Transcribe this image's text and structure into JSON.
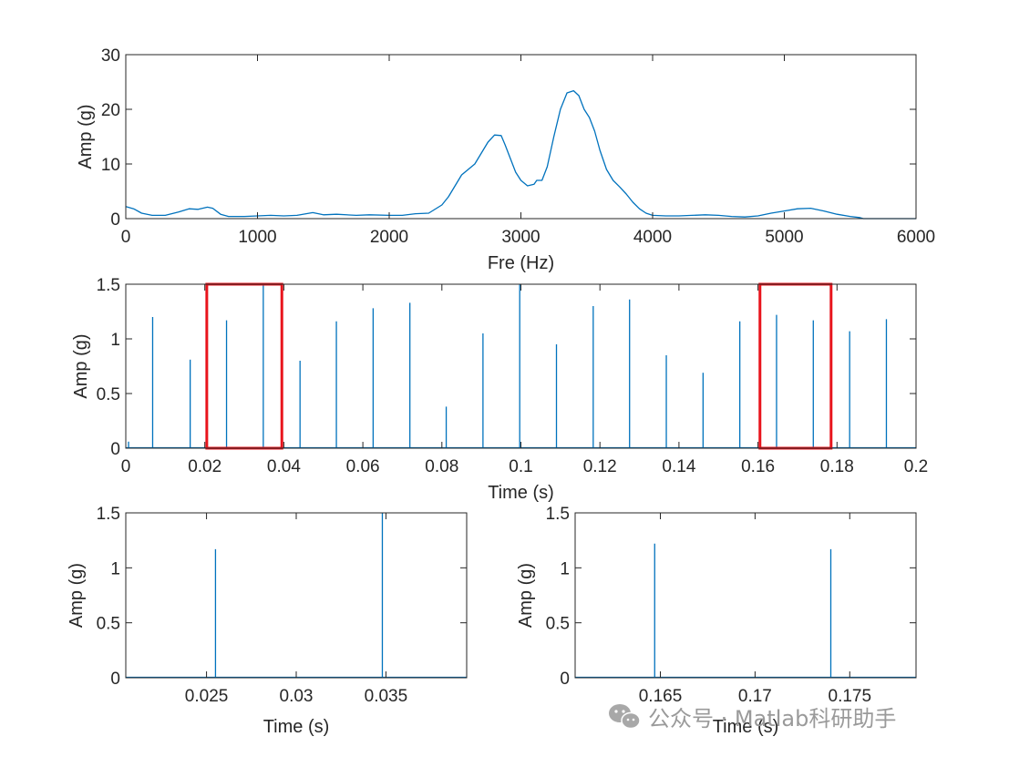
{
  "chart_data": [
    {
      "id": "spectrum",
      "type": "line",
      "xlabel": "Fre (Hz)",
      "ylabel": "Amp (g)",
      "xlim": [
        0,
        6000
      ],
      "ylim": [
        0,
        30
      ],
      "xticks": [
        0,
        1000,
        2000,
        3000,
        4000,
        5000,
        6000
      ],
      "yticks": [
        0,
        10,
        20,
        30
      ],
      "series": [
        {
          "color": "#0072bd",
          "x": [
            0,
            60,
            120,
            200,
            300,
            400,
            480,
            550,
            620,
            660,
            720,
            780,
            900,
            1000,
            1100,
            1200,
            1300,
            1420,
            1500,
            1600,
            1750,
            1850,
            2000,
            2100,
            2200,
            2300,
            2400,
            2450,
            2500,
            2550,
            2600,
            2650,
            2700,
            2750,
            2800,
            2850,
            2880,
            2920,
            2960,
            3000,
            3050,
            3100,
            3120,
            3160,
            3200,
            3250,
            3300,
            3350,
            3400,
            3440,
            3480,
            3520,
            3560,
            3600,
            3650,
            3700,
            3750,
            3800,
            3850,
            3900,
            3950,
            4000,
            4100,
            4200,
            4300,
            4400,
            4500,
            4600,
            4700,
            4800,
            4900,
            5000,
            5100,
            5200,
            5300,
            5400,
            5500,
            5570,
            5600,
            6000
          ],
          "y": [
            2.2,
            1.8,
            1.0,
            0.6,
            0.6,
            1.2,
            1.8,
            1.7,
            2.1,
            1.9,
            0.8,
            0.4,
            0.4,
            0.5,
            0.6,
            0.5,
            0.6,
            1.1,
            0.7,
            0.8,
            0.6,
            0.7,
            0.6,
            0.6,
            0.9,
            1.0,
            2.5,
            4.0,
            6.0,
            8.0,
            9.0,
            10.0,
            12.0,
            14.0,
            15.3,
            15.2,
            13.5,
            11.0,
            8.5,
            7.0,
            6.0,
            6.3,
            7.0,
            7.0,
            9.5,
            15.0,
            20.0,
            23.0,
            23.4,
            22.5,
            20.0,
            18.5,
            16.0,
            12.5,
            9.0,
            7.0,
            5.8,
            4.5,
            3.0,
            1.8,
            1.0,
            0.6,
            0.5,
            0.5,
            0.6,
            0.7,
            0.6,
            0.4,
            0.3,
            0.5,
            1.0,
            1.4,
            1.8,
            1.9,
            1.4,
            0.8,
            0.4,
            0.2,
            0.0,
            0.0
          ]
        }
      ]
    },
    {
      "id": "waveform",
      "type": "line",
      "xlabel": "Time (s)",
      "ylabel": "Amp (g)",
      "xlim": [
        0,
        0.2
      ],
      "ylim": [
        0,
        1.5
      ],
      "xticks": [
        0,
        0.02,
        0.04,
        0.06,
        0.08,
        0.1,
        0.12,
        0.14,
        0.16,
        0.18,
        0.2
      ],
      "yticks": [
        0,
        0.5,
        1,
        1.5
      ],
      "spikes": [
        {
          "x": 0.0007,
          "y": 0.06
        },
        {
          "x": 0.0068,
          "y": 1.2
        },
        {
          "x": 0.0163,
          "y": 0.81
        },
        {
          "x": 0.0255,
          "y": 1.17
        },
        {
          "x": 0.0348,
          "y": 1.5
        },
        {
          "x": 0.0441,
          "y": 0.8
        },
        {
          "x": 0.0533,
          "y": 1.16
        },
        {
          "x": 0.0626,
          "y": 1.28
        },
        {
          "x": 0.0719,
          "y": 1.33
        },
        {
          "x": 0.0811,
          "y": 0.38
        },
        {
          "x": 0.0904,
          "y": 1.05
        },
        {
          "x": 0.0997,
          "y": 1.5
        },
        {
          "x": 0.109,
          "y": 0.95
        },
        {
          "x": 0.1183,
          "y": 1.3
        },
        {
          "x": 0.1275,
          "y": 1.36
        },
        {
          "x": 0.1368,
          "y": 0.85
        },
        {
          "x": 0.1461,
          "y": 0.69
        },
        {
          "x": 0.1554,
          "y": 1.16
        },
        {
          "x": 0.1647,
          "y": 1.22
        },
        {
          "x": 0.174,
          "y": 1.17
        },
        {
          "x": 0.1832,
          "y": 1.07
        },
        {
          "x": 0.1925,
          "y": 1.18
        }
      ],
      "highlight_boxes": [
        {
          "x": [
            0.0205,
            0.0395
          ],
          "y": [
            0,
            1.5
          ]
        },
        {
          "x": 0.1605,
          "x_end": 0.1785,
          "y": [
            0,
            1.5
          ]
        }
      ]
    },
    {
      "id": "zoom-left",
      "type": "line",
      "xlabel": "Time (s)",
      "ylabel": "Amp (g)",
      "xlim": [
        0.0205,
        0.0395
      ],
      "ylim": [
        0,
        1.5
      ],
      "xticks": [
        0.025,
        0.03,
        0.035
      ],
      "xticklabels": [
        "0.025",
        "0.03",
        "0.035"
      ],
      "yticks": [
        0,
        0.5,
        1,
        1.5
      ],
      "spikes": [
        {
          "x": 0.0255,
          "y": 1.17
        },
        {
          "x": 0.0348,
          "y": 1.5
        }
      ]
    },
    {
      "id": "zoom-right",
      "type": "line",
      "xlabel": "Time (s)",
      "ylabel": "Amp (g)",
      "xlim": [
        0.1605,
        0.1785
      ],
      "ylim": [
        0,
        1.5
      ],
      "xticks": [
        0.165,
        0.17,
        0.175
      ],
      "xticklabels": [
        "0.165",
        "0.17",
        "0.175"
      ],
      "yticks": [
        0,
        0.5,
        1,
        1.5
      ],
      "spikes": [
        {
          "x": 0.1647,
          "y": 1.22
        },
        {
          "x": 0.174,
          "y": 1.17
        }
      ]
    }
  ],
  "watermark": {
    "text": "公众号 · Matlab科研助手",
    "icon": "wechat-icon"
  }
}
